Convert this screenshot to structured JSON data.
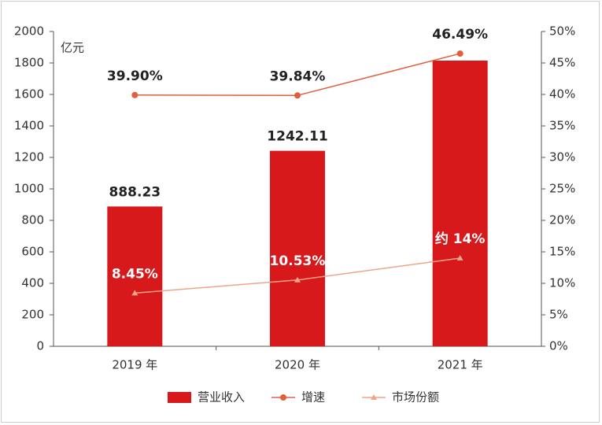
{
  "chart_data": {
    "type": "bar",
    "unit": "亿元",
    "categories": [
      "2019 年",
      "2020 年",
      "2021 年"
    ],
    "series": [
      {
        "name": "营业收入",
        "type": "bar",
        "color": "#d7191c",
        "values": [
          888.23,
          1242.11,
          1815
        ],
        "value_labels": [
          "888.23",
          "1242.11",
          null
        ]
      },
      {
        "name": "增速",
        "type": "line",
        "axis": "y2",
        "marker": "circle",
        "color": "#e0603e",
        "values": [
          39.9,
          39.84,
          46.49
        ],
        "value_labels": [
          "39.90%",
          "39.84%",
          "46.49%"
        ]
      },
      {
        "name": "市场份额",
        "type": "line",
        "axis": "y2",
        "marker": "triangle",
        "color": "#f0a58a",
        "values": [
          8.45,
          10.53,
          14
        ],
        "value_labels": [
          "8.45%",
          "10.53%",
          "约 14%"
        ]
      }
    ],
    "ylim": [
      0,
      2000
    ],
    "yticks": [
      0,
      200,
      400,
      600,
      800,
      1000,
      1200,
      1400,
      1600,
      1800,
      2000
    ],
    "y2lim": [
      0,
      50
    ],
    "y2ticks": [
      {
        "value": 0,
        "label": "0%"
      },
      {
        "value": 5,
        "label": "5%"
      },
      {
        "value": 10,
        "label": "10%"
      },
      {
        "value": 15,
        "label": "15%"
      },
      {
        "value": 20,
        "label": "20%"
      },
      {
        "value": 25,
        "label": "25%"
      },
      {
        "value": 30,
        "label": "30%"
      },
      {
        "value": 35,
        "label": "35%"
      },
      {
        "value": 40,
        "label": "40%"
      },
      {
        "value": 45,
        "label": "45%"
      },
      {
        "value": 50,
        "label": "50%"
      }
    ]
  }
}
